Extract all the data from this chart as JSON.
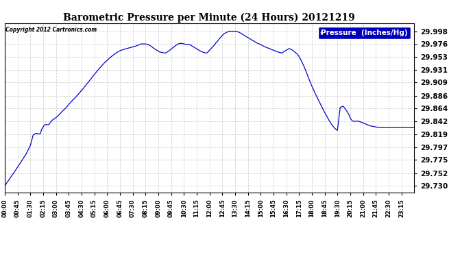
{
  "title": "Barometric Pressure per Minute (24 Hours) 20121219",
  "copyright": "Copyright 2012 Cartronics.com",
  "legend_label": "Pressure  (Inches/Hg)",
  "line_color": "#0000cc",
  "legend_bg": "#0000bb",
  "background_color": "#ffffff",
  "grid_color": "#cccccc",
  "yticks": [
    29.73,
    29.752,
    29.775,
    29.797,
    29.819,
    29.842,
    29.864,
    29.886,
    29.909,
    29.931,
    29.953,
    29.976,
    29.998
  ],
  "ylim": [
    29.718,
    30.012
  ],
  "xtick_labels": [
    "00:00",
    "00:45",
    "01:30",
    "02:15",
    "03:00",
    "03:45",
    "04:30",
    "05:15",
    "06:00",
    "06:45",
    "07:30",
    "08:15",
    "09:00",
    "09:45",
    "10:30",
    "11:15",
    "12:00",
    "12:45",
    "13:30",
    "14:15",
    "15:00",
    "15:45",
    "16:30",
    "17:15",
    "18:00",
    "18:45",
    "19:30",
    "20:15",
    "21:00",
    "21:45",
    "22:30",
    "23:15"
  ],
  "keypoints": [
    [
      0,
      29.73
    ],
    [
      20,
      29.744
    ],
    [
      45,
      29.762
    ],
    [
      75,
      29.785
    ],
    [
      90,
      29.8
    ],
    [
      100,
      29.818
    ],
    [
      110,
      29.821
    ],
    [
      120,
      29.82
    ],
    [
      125,
      29.82
    ],
    [
      130,
      29.828
    ],
    [
      140,
      29.836
    ],
    [
      150,
      29.836
    ],
    [
      155,
      29.836
    ],
    [
      165,
      29.843
    ],
    [
      185,
      29.85
    ],
    [
      200,
      29.858
    ],
    [
      215,
      29.865
    ],
    [
      230,
      29.874
    ],
    [
      250,
      29.884
    ],
    [
      270,
      29.895
    ],
    [
      290,
      29.907
    ],
    [
      310,
      29.92
    ],
    [
      330,
      29.932
    ],
    [
      350,
      29.943
    ],
    [
      370,
      29.952
    ],
    [
      385,
      29.958
    ],
    [
      400,
      29.963
    ],
    [
      415,
      29.966
    ],
    [
      430,
      29.968
    ],
    [
      445,
      29.97
    ],
    [
      460,
      29.972
    ],
    [
      470,
      29.974
    ],
    [
      480,
      29.976
    ],
    [
      495,
      29.976
    ],
    [
      505,
      29.975
    ],
    [
      515,
      29.972
    ],
    [
      525,
      29.968
    ],
    [
      535,
      29.965
    ],
    [
      545,
      29.962
    ],
    [
      555,
      29.961
    ],
    [
      565,
      29.96
    ],
    [
      575,
      29.963
    ],
    [
      585,
      29.967
    ],
    [
      595,
      29.971
    ],
    [
      610,
      29.976
    ],
    [
      620,
      29.977
    ],
    [
      630,
      29.976
    ],
    [
      640,
      29.975
    ],
    [
      650,
      29.975
    ],
    [
      660,
      29.972
    ],
    [
      670,
      29.969
    ],
    [
      680,
      29.966
    ],
    [
      690,
      29.963
    ],
    [
      700,
      29.961
    ],
    [
      710,
      29.96
    ],
    [
      715,
      29.962
    ],
    [
      720,
      29.965
    ],
    [
      730,
      29.97
    ],
    [
      740,
      29.976
    ],
    [
      750,
      29.982
    ],
    [
      760,
      29.988
    ],
    [
      770,
      29.993
    ],
    [
      780,
      29.996
    ],
    [
      790,
      29.998
    ],
    [
      800,
      29.998
    ],
    [
      815,
      29.998
    ],
    [
      825,
      29.996
    ],
    [
      835,
      29.993
    ],
    [
      845,
      29.99
    ],
    [
      855,
      29.987
    ],
    [
      865,
      29.984
    ],
    [
      875,
      29.981
    ],
    [
      885,
      29.978
    ],
    [
      900,
      29.975
    ],
    [
      910,
      29.972
    ],
    [
      920,
      29.97
    ],
    [
      930,
      29.968
    ],
    [
      940,
      29.966
    ],
    [
      950,
      29.964
    ],
    [
      960,
      29.962
    ],
    [
      970,
      29.961
    ],
    [
      975,
      29.96
    ],
    [
      980,
      29.962
    ],
    [
      990,
      29.965
    ],
    [
      1000,
      29.968
    ],
    [
      1010,
      29.966
    ],
    [
      1020,
      29.962
    ],
    [
      1030,
      29.958
    ],
    [
      1040,
      29.95
    ],
    [
      1050,
      29.94
    ],
    [
      1060,
      29.928
    ],
    [
      1070,
      29.915
    ],
    [
      1080,
      29.903
    ],
    [
      1090,
      29.892
    ],
    [
      1100,
      29.882
    ],
    [
      1110,
      29.872
    ],
    [
      1120,
      29.862
    ],
    [
      1130,
      29.853
    ],
    [
      1140,
      29.844
    ],
    [
      1150,
      29.836
    ],
    [
      1160,
      29.83
    ],
    [
      1170,
      29.826
    ],
    [
      1180,
      29.866
    ],
    [
      1190,
      29.868
    ],
    [
      1200,
      29.862
    ],
    [
      1210,
      29.854
    ],
    [
      1215,
      29.848
    ],
    [
      1220,
      29.844
    ],
    [
      1225,
      29.842
    ],
    [
      1235,
      29.842
    ],
    [
      1245,
      29.842
    ],
    [
      1255,
      29.84
    ],
    [
      1265,
      29.838
    ],
    [
      1275,
      29.836
    ],
    [
      1285,
      29.834
    ],
    [
      1295,
      29.833
    ],
    [
      1305,
      29.832
    ],
    [
      1320,
      29.831
    ],
    [
      1340,
      29.831
    ],
    [
      1360,
      29.831
    ],
    [
      1380,
      29.831
    ],
    [
      1400,
      29.831
    ],
    [
      1420,
      29.831
    ],
    [
      1439,
      29.831
    ]
  ]
}
